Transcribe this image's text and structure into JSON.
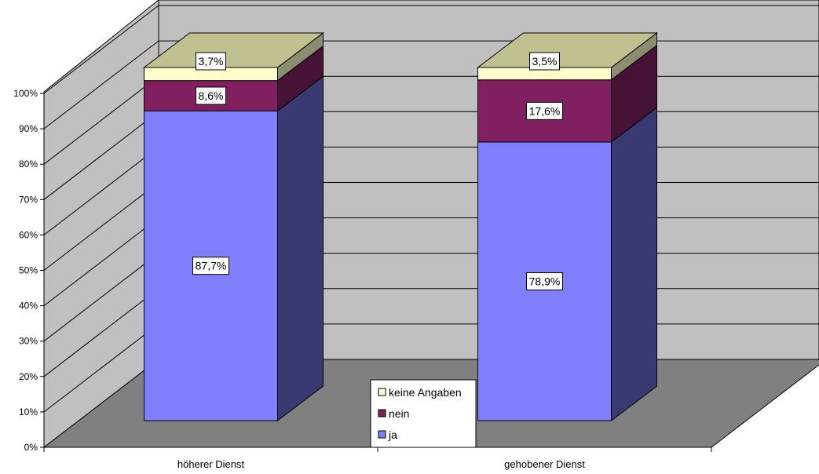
{
  "chart_data": {
    "type": "bar",
    "stacked": true,
    "three_d": true,
    "percent_stacked": true,
    "categories": [
      "höherer Dienst",
      "gehobener Dienst"
    ],
    "series": [
      {
        "name": "ja",
        "values": [
          87.7,
          78.9
        ],
        "labels": [
          "87,7%",
          "78,9%"
        ]
      },
      {
        "name": "nein",
        "values": [
          8.6,
          17.6
        ],
        "labels": [
          "8,6%",
          "17,6%"
        ]
      },
      {
        "name": "keine Angaben",
        "values": [
          3.7,
          3.5
        ],
        "labels": [
          "3,7%",
          "3,5%"
        ]
      }
    ],
    "yticks": [
      "0%",
      "10%",
      "20%",
      "30%",
      "40%",
      "50%",
      "60%",
      "70%",
      "80%",
      "90%",
      "100%"
    ],
    "ylim": [
      0,
      100
    ],
    "grid": true,
    "legend_position": "bottom-center",
    "legend_order": [
      "keine Angaben",
      "nein",
      "ja"
    ],
    "colors": {
      "ja": "#8080ff",
      "nein": "#802060",
      "keine Angaben": "#ffffcc",
      "back_wall": "#c0c0c0",
      "side_wall": "#c0c0c0",
      "floor": "#808080"
    }
  }
}
